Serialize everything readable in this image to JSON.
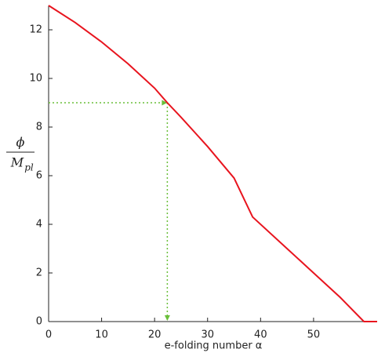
{
  "chart_data": {
    "type": "line",
    "xlabel": "e-folding number α",
    "ylabel": {
      "numerator": "ϕ",
      "denominator": "M",
      "denominator_subscript": "pl"
    },
    "x": [
      0,
      5,
      10,
      15,
      20,
      22.4,
      25,
      30,
      35,
      38.5,
      45,
      50,
      55,
      59.5,
      62
    ],
    "series": [
      {
        "color": "#e8141e",
        "values": [
          13,
          12.3,
          11.5,
          10.6,
          9.6,
          9,
          8.4,
          7.2,
          5.9,
          4.3,
          3,
          2,
          1,
          0,
          0
        ]
      }
    ],
    "guide": {
      "x": 22.4,
      "y": 9,
      "color": "#6abf3a"
    },
    "xlim": [
      0,
      62
    ],
    "ylim": [
      0,
      13
    ],
    "xticks": [
      0,
      10,
      20,
      30,
      40,
      50
    ],
    "yticks": [
      0,
      2,
      4,
      6,
      8,
      10,
      12
    ]
  }
}
